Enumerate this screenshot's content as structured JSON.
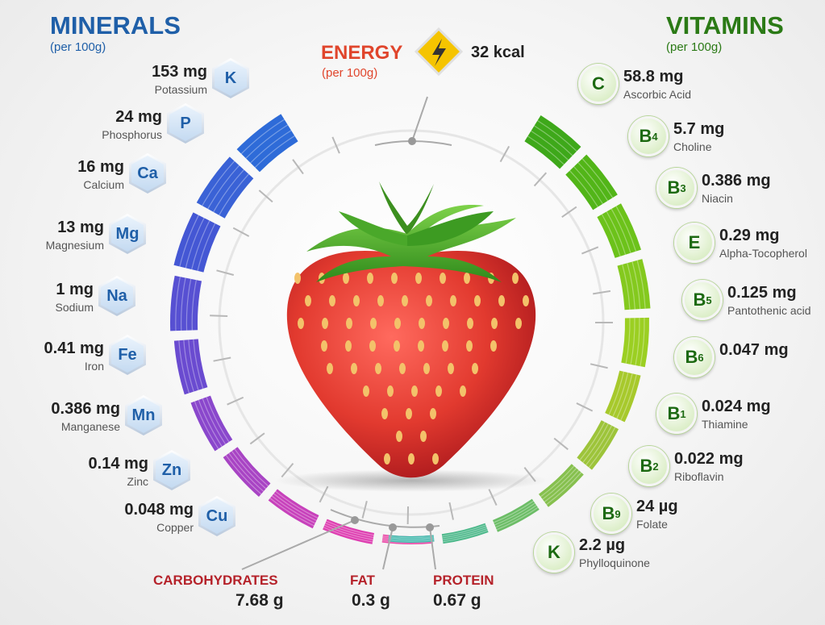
{
  "headers": {
    "minerals": "MINERALS",
    "minerals_per": "(per 100g)",
    "vitamins": "VITAMINS",
    "vitamins_per": "(per 100g)",
    "energy": "ENERGY",
    "energy_per": "(per 100g)",
    "energy_value": "32 kcal"
  },
  "minerals": [
    {
      "symbol": "K",
      "amount": "153 mg",
      "name": "Potassium"
    },
    {
      "symbol": "P",
      "amount": "24 mg",
      "name": "Phosphorus"
    },
    {
      "symbol": "Ca",
      "amount": "16 mg",
      "name": "Calcium"
    },
    {
      "symbol": "Mg",
      "amount": "13 mg",
      "name": "Magnesium"
    },
    {
      "symbol": "Na",
      "amount": "1 mg",
      "name": "Sodium"
    },
    {
      "symbol": "Fe",
      "amount": "0.41 mg",
      "name": "Iron"
    },
    {
      "symbol": "Mn",
      "amount": "0.386 mg",
      "name": "Manganese"
    },
    {
      "symbol": "Zn",
      "amount": "0.14 mg",
      "name": "Zinc"
    },
    {
      "symbol": "Cu",
      "amount": "0.048 mg",
      "name": "Copper"
    }
  ],
  "vitamins": [
    {
      "letter": "C",
      "sub": "",
      "amount": "58.8 mg",
      "name": "Ascorbic Acid"
    },
    {
      "letter": "B",
      "sub": "4",
      "amount": "5.7 mg",
      "name": "Choline"
    },
    {
      "letter": "B",
      "sub": "3",
      "amount": "0.386 mg",
      "name": "Niacin"
    },
    {
      "letter": "E",
      "sub": "",
      "amount": "0.29 mg",
      "name": "Alpha-Tocopherol"
    },
    {
      "letter": "B",
      "sub": "5",
      "amount": "0.125 mg",
      "name": "Pantothenic acid"
    },
    {
      "letter": "B",
      "sub": "6",
      "amount": "0.047 mg",
      "name": ""
    },
    {
      "letter": "B",
      "sub": "1",
      "amount": "0.024 mg",
      "name": "Thiamine"
    },
    {
      "letter": "B",
      "sub": "2",
      "amount": "0.022 mg",
      "name": "Riboflavin"
    },
    {
      "letter": "B",
      "sub": "9",
      "amount": "24 µg",
      "name": "Folate"
    },
    {
      "letter": "K",
      "sub": "",
      "amount": "2.2 µg",
      "name": "Phylloquinone"
    }
  ],
  "macros": [
    {
      "name": "CARBOHYDRATES",
      "value": "7.68 g"
    },
    {
      "name": "FAT",
      "value": "0.3 g"
    },
    {
      "name": "PROTEIN",
      "value": "0.67 g"
    }
  ],
  "colors": {
    "minerals_arc": [
      "#2e6bd8",
      "#3a62d6",
      "#4457d4",
      "#5750d2",
      "#6a4bd0",
      "#8a47cc",
      "#a844c4",
      "#c741bb",
      "#de3fb1",
      "#e94aa7"
    ],
    "vitamins_arc": [
      "#3ea81a",
      "#52b518",
      "#6cc21a",
      "#84c91e",
      "#9bcf22",
      "#a7c92c",
      "#9dc43a",
      "#86c04e",
      "#6cbd66",
      "#4cb88a",
      "#33b3a6"
    ],
    "strawberry": "#e23a2f",
    "leaf": "#3d9b22",
    "energy_icon": "#f5c400"
  },
  "icons": {
    "energy": "lightning-bolt-icon",
    "fruit": "strawberry-illustration"
  }
}
